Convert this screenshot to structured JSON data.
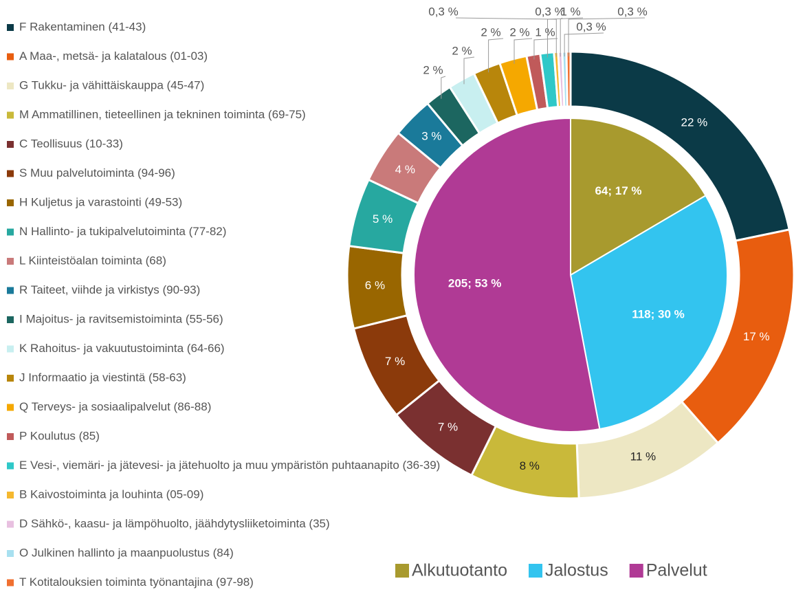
{
  "chart_data": [
    {
      "type": "donut",
      "categories": [
        "F Rakentaminen (41-43)",
        "A Maa-, metsä- ja kalatalous (01-03)",
        "G Tukku- ja vähittäiskauppa (45-47)",
        "M Ammatillinen, tieteellinen ja tekninen toiminta (69-75)",
        "C Teollisuus (10-33)",
        "S Muu palvelutoiminta (94-96)",
        "H Kuljetus ja varastointi (49-53)",
        "N Hallinto- ja tukipalvelutoiminta (77-82)",
        "L Kiinteistöalan toiminta (68)",
        "R Taiteet, viihde ja virkistys (90-93)",
        "I Majoitus- ja ravitsemistoiminta (55-56)",
        "K Rahoitus- ja vakuutustoiminta (64-66)",
        "J Informaatio ja viestintä (58-63)",
        "Q Terveys- ja sosiaalipalvelut (86-88)",
        "P Koulutus (85)",
        "E Vesi-, viemäri- ja jätevesi- ja jätehuolto ja muu ympäristön puhtaanapito (36-39)",
        "B Kaivostoiminta ja louhinta (05-09)",
        "D Sähkö-, kaasu- ja lämpöhuolto, jäähdytysliiketoiminta (35)",
        "O Julkinen hallinto ja maanpuolustus (84)",
        "T Kotitalouksien toiminta työnantajina (97-98)"
      ],
      "values": [
        22,
        17,
        11,
        8,
        7,
        7,
        6,
        5,
        4,
        3,
        2,
        2,
        2,
        2,
        1,
        1,
        0.3,
        0.3,
        0.3,
        0.3
      ],
      "value_labels": [
        "22 %",
        "17 %",
        "11 %",
        "8 %",
        "7 %",
        "7 %",
        "6 %",
        "5 %",
        "4 %",
        "3 %",
        "2 %",
        "2 %",
        "2 %",
        "2 %",
        "1 %",
        "1 %",
        "0,3 %",
        "0,3 %",
        "0,3 %",
        "0,3 %"
      ],
      "colors": [
        "#0b3a47",
        "#e85d0f",
        "#ede7c3",
        "#c9b93a",
        "#7a3030",
        "#8b3a0b",
        "#996600",
        "#27a8a0",
        "#c97a7a",
        "#1a7a9a",
        "#1c6660",
        "#c8eff0",
        "#b8860b",
        "#f5a800",
        "#c05a5a",
        "#2fc8c8",
        "#f5b82f",
        "#e8c0e0",
        "#a8e0f0",
        "#f07030"
      ],
      "legend": "left"
    },
    {
      "type": "pie",
      "categories": [
        "Alkutuotanto",
        "Jalostus",
        "Palvelut"
      ],
      "values": [
        64,
        118,
        205
      ],
      "value_labels": [
        "64; 17 %",
        "118; 30 %",
        "205; 53 %"
      ],
      "colors": [
        "#a89a2e",
        "#33c4ef",
        "#b03a95"
      ],
      "legend": "bottom"
    }
  ]
}
